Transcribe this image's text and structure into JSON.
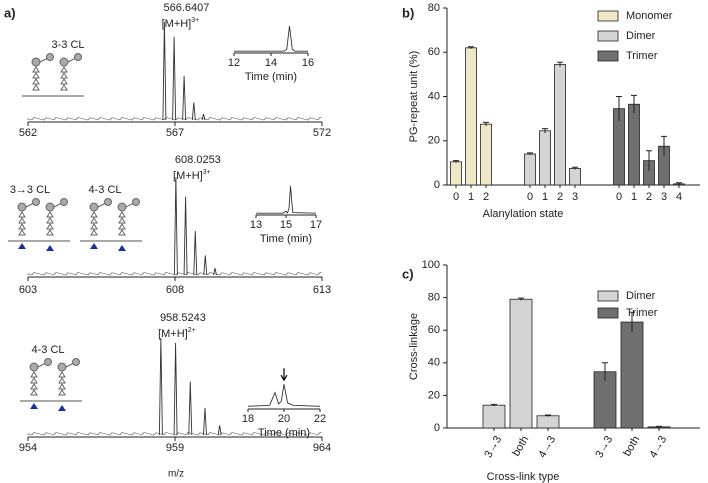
{
  "chart_data": [
    {
      "type": "spectrum",
      "panel": "a)",
      "labels": [
        "3-3 CL"
      ],
      "peak_label": "566.6407",
      "ion": "[M+H]",
      "charge": "3+",
      "x": [
        566.64,
        566.97,
        567.31,
        567.64,
        567.97
      ],
      "values": [
        100,
        85,
        45,
        18,
        6
      ],
      "xlim": [
        562,
        572
      ],
      "xticks": [
        562,
        567,
        572
      ],
      "color": "#333333",
      "inset": {
        "xlabel": "Time (min)",
        "x": [
          12,
          14.7,
          14.85,
          15,
          15.15,
          15.3,
          16
        ],
        "values": [
          3,
          3,
          10,
          100,
          10,
          3,
          3
        ],
        "xlim": [
          12,
          16
        ],
        "xticks": [
          12,
          14,
          16
        ]
      }
    },
    {
      "type": "spectrum",
      "labels": [
        "3→3 CL",
        "4-3 CL"
      ],
      "peak_label": "608.0253",
      "ion": "[M+H]",
      "charge": "3+",
      "x": [
        608.03,
        608.36,
        608.69,
        609.03,
        609.36
      ],
      "values": [
        100,
        80,
        45,
        20,
        7
      ],
      "xlim": [
        603,
        613
      ],
      "xticks": [
        603,
        608,
        613
      ],
      "color": "#333333",
      "inset": {
        "xlabel": "Time (min)",
        "x": [
          13,
          14.8,
          15,
          15.1,
          15.2,
          15.3,
          15.45,
          17
        ],
        "values": [
          3,
          3,
          10,
          4,
          20,
          100,
          5,
          3
        ],
        "xlim": [
          13,
          17
        ],
        "xticks": [
          13,
          15,
          17
        ]
      }
    },
    {
      "type": "spectrum",
      "labels": [
        "4-3 CL"
      ],
      "peak_label": "958.5243",
      "ion": "[M+H]",
      "charge": "2+",
      "xlabel": "m/z",
      "x": [
        958.52,
        959.02,
        959.52,
        960.02,
        960.52
      ],
      "values": [
        100,
        95,
        55,
        28,
        10
      ],
      "xlim": [
        954,
        964
      ],
      "xticks": [
        954,
        959,
        964
      ],
      "color": "#333333",
      "inset": {
        "xlabel": "Time (min)",
        "x": [
          18,
          19.2,
          19.5,
          19.7,
          19.85,
          20,
          20.2,
          20.5,
          22
        ],
        "values": [
          5,
          8,
          45,
          12,
          20,
          70,
          15,
          8,
          5
        ],
        "xlim": [
          18,
          22
        ],
        "xticks": [
          18,
          20,
          22
        ],
        "arrow": true
      }
    },
    {
      "type": "bar",
      "panel": "b)",
      "ylabel": "PG-repeat unit (%)",
      "xlabel": "Alanylation state",
      "ylim": [
        0,
        80
      ],
      "yticks": [
        0,
        20,
        40,
        60,
        80
      ],
      "legend": "upper right",
      "series": [
        {
          "name": "Monomer",
          "color": "#efe8c8",
          "categories": [
            "0",
            "1",
            "2"
          ],
          "values": [
            10.5,
            62,
            27.5
          ],
          "errors": [
            0.5,
            0.5,
            0.8
          ]
        },
        {
          "name": "Dimer",
          "color": "#d4d4d4",
          "categories": [
            "0",
            "1",
            "2",
            "3"
          ],
          "values": [
            14,
            24.5,
            54.5,
            7.5
          ],
          "errors": [
            0.5,
            1,
            1,
            0.5
          ]
        },
        {
          "name": "Trimer",
          "color": "#707070",
          "categories": [
            "0",
            "1",
            "2",
            "3",
            "4"
          ],
          "values": [
            34.5,
            36.5,
            11,
            17.5,
            0.5
          ],
          "errors": [
            5.5,
            4,
            4.5,
            4.5,
            0.5
          ]
        }
      ]
    },
    {
      "type": "bar",
      "panel": "c)",
      "ylabel": "Cross-linkage",
      "xlabel": "Cross-link type",
      "ylim": [
        0,
        100
      ],
      "yticks": [
        0,
        20,
        40,
        60,
        80,
        100
      ],
      "legend": "upper right",
      "series": [
        {
          "name": "Dimer",
          "color": "#d4d4d4",
          "categories": [
            "3→3",
            "both",
            "4→3"
          ],
          "values": [
            14,
            79,
            7.5
          ],
          "errors": [
            0.5,
            0.7,
            0.5
          ]
        },
        {
          "name": "Trimer",
          "color": "#707070",
          "categories": [
            "3→3",
            "both",
            "4→3"
          ],
          "values": [
            34.5,
            65,
            0.7
          ],
          "errors": [
            5.5,
            6,
            0.3
          ]
        }
      ]
    }
  ]
}
